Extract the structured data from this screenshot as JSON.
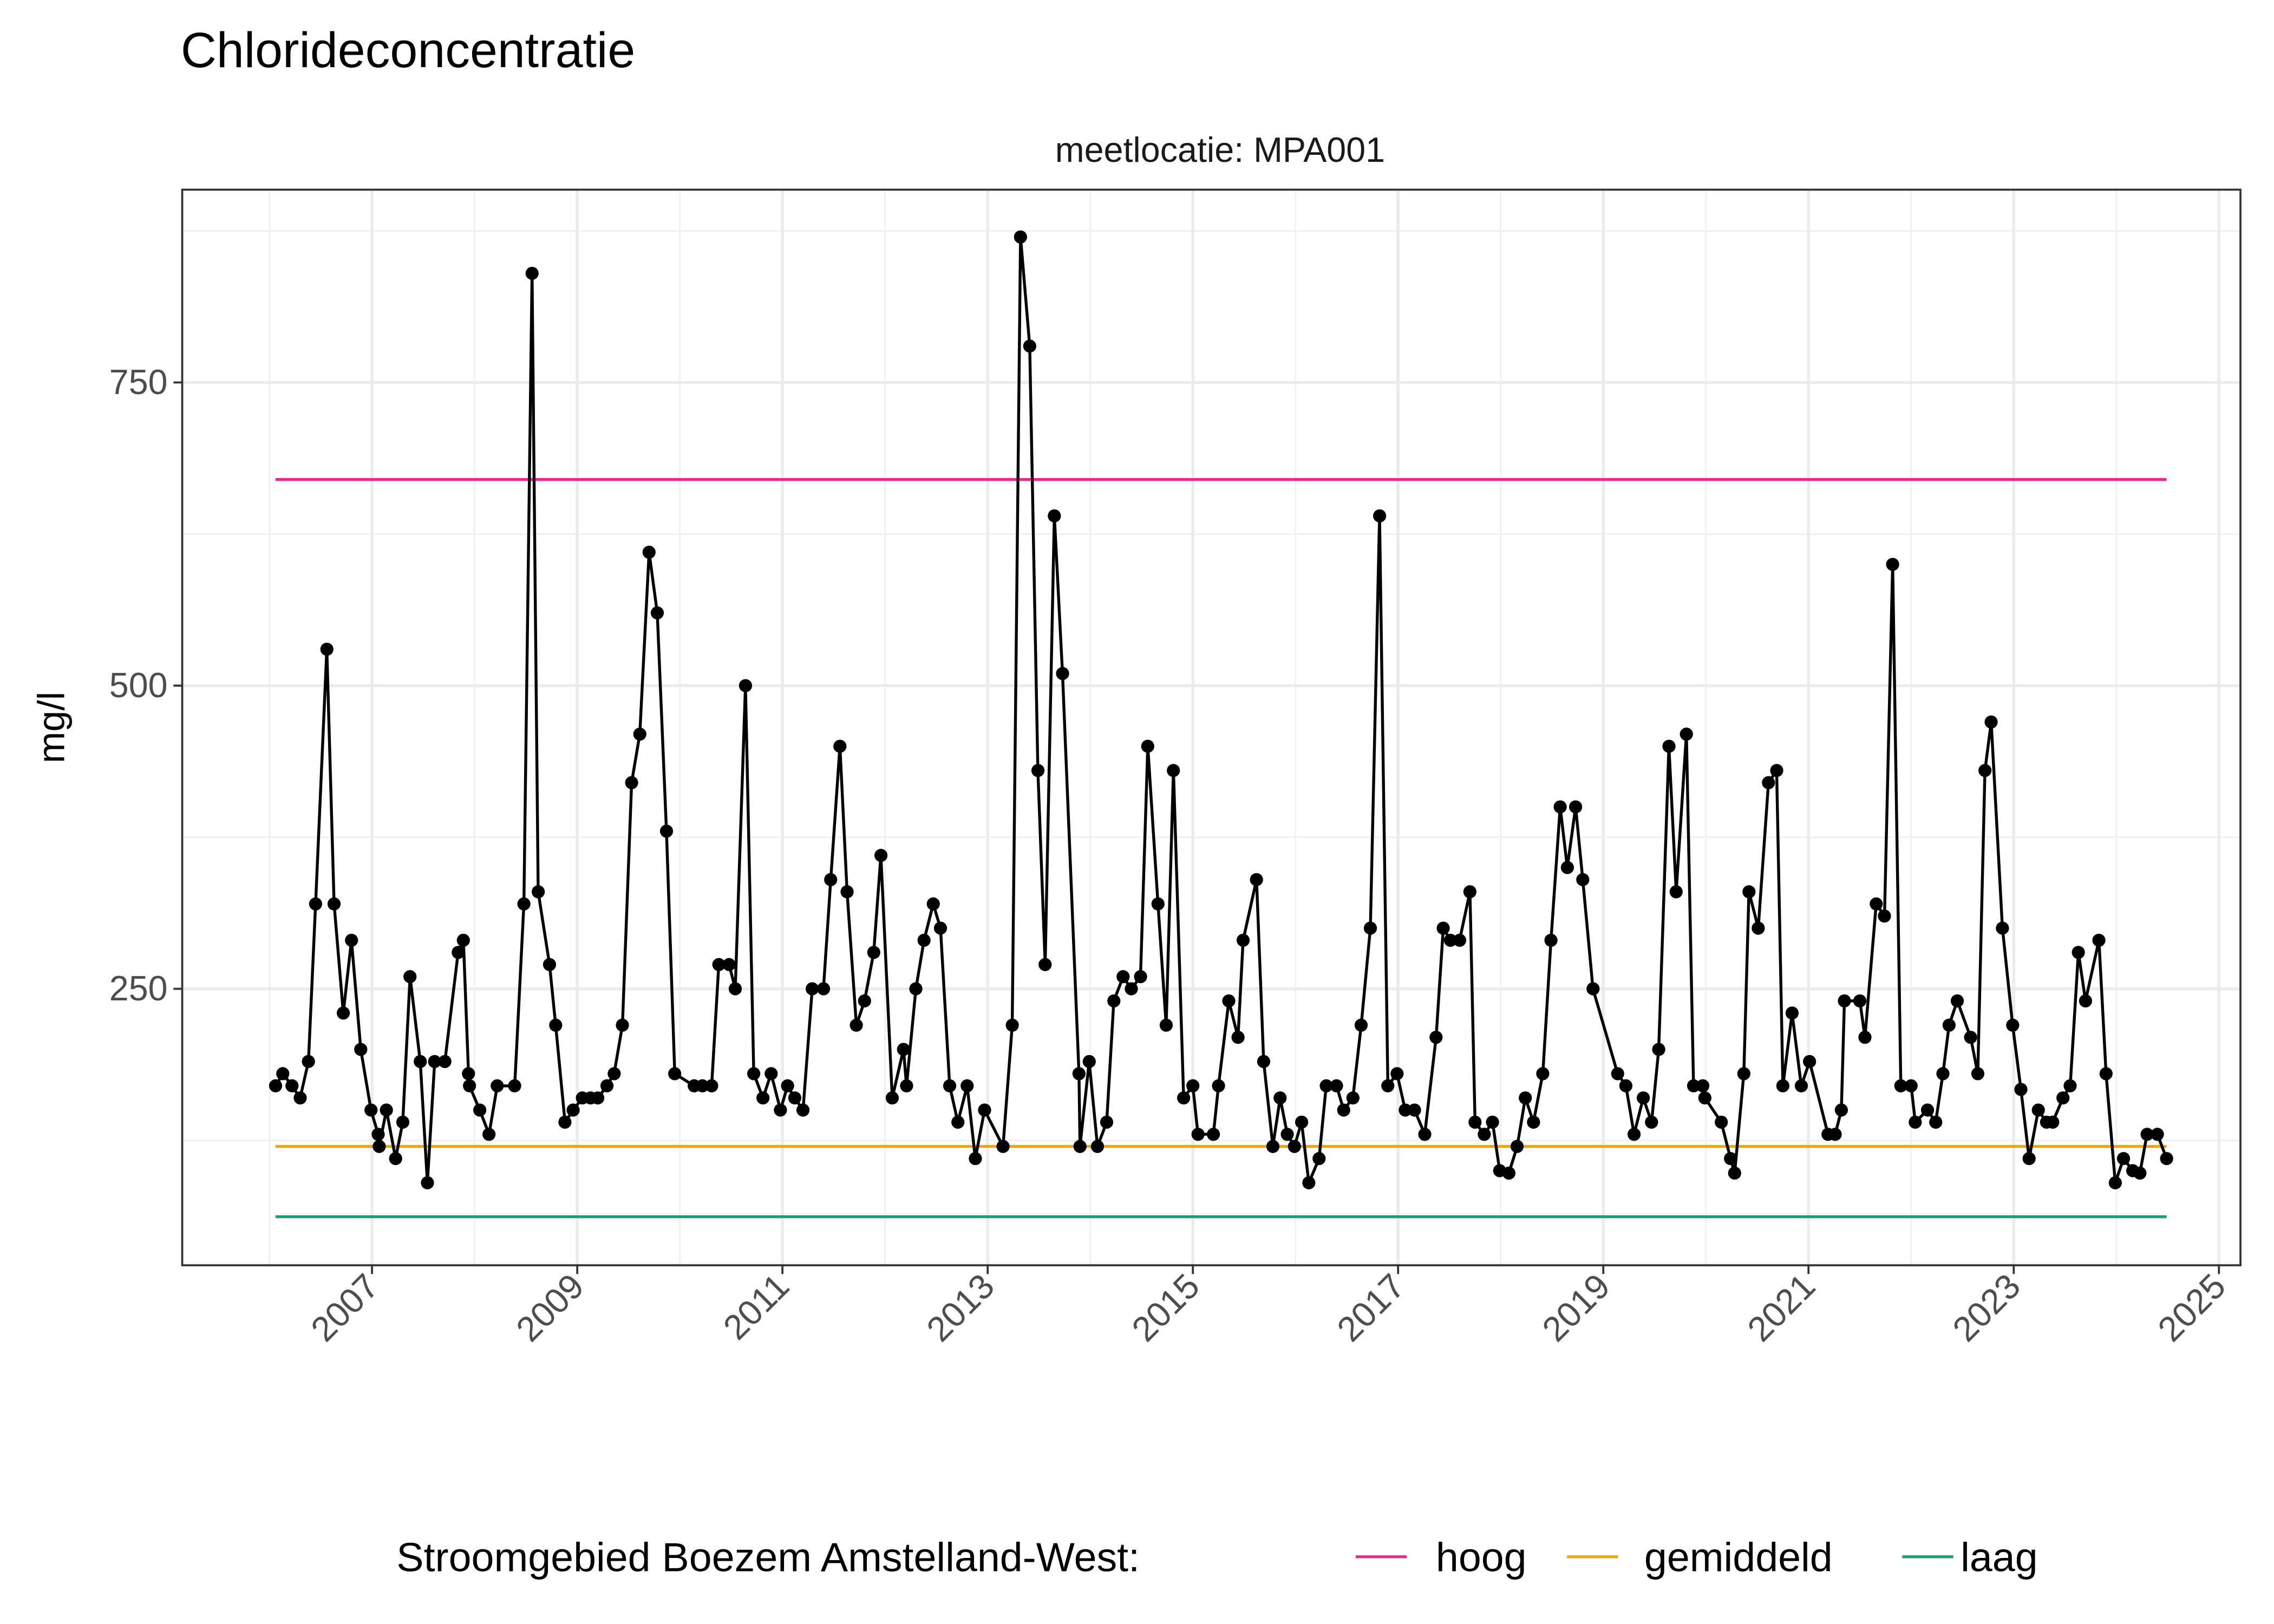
{
  "chart_data": {
    "type": "line",
    "title": "Chlorideconcentratie",
    "facet_label": "meetlocatie: MPA001",
    "xlabel": "",
    "ylabel": "mg/l",
    "xlim": [
      2005.15,
      2025.21
    ],
    "ylim": [
      22,
      909
    ],
    "x_ticks": [
      "2007",
      "2009",
      "2011",
      "2013",
      "2015",
      "2017",
      "2019",
      "2021",
      "2023",
      "2025"
    ],
    "y_ticks": [
      250,
      500,
      750
    ],
    "grid": true,
    "legend": {
      "title": "Stroomgebied Boezem Amstelland-West:",
      "position": "bottom",
      "entries": [
        {
          "label": "hoog",
          "color": "#e7298a"
        },
        {
          "label": "gemiddeld",
          "color": "#e6ab02"
        },
        {
          "label": "laag",
          "color": "#1b9e77"
        }
      ]
    },
    "reference_lines": [
      {
        "name": "hoog",
        "value": 670,
        "color": "#e7298a"
      },
      {
        "name": "gemiddeld",
        "value": 120,
        "color": "#e6ab02"
      },
      {
        "name": "laag",
        "value": 62,
        "color": "#1b9e77"
      }
    ],
    "series": [
      {
        "color": "#000000",
        "x": [
          2006.06,
          2006.13,
          2006.22,
          2006.3,
          2006.38,
          2006.45,
          2006.56,
          2006.63,
          2006.72,
          2006.8,
          2006.89,
          2006.99,
          2007.06,
          2007.07,
          2007.14,
          2007.23,
          2007.3,
          2007.37,
          2007.47,
          2007.54,
          2007.61,
          2007.71,
          2007.84,
          2007.89,
          2007.94,
          2007.95,
          2008.05,
          2008.14,
          2008.22,
          2008.39,
          2008.48,
          2008.56,
          2008.62,
          2008.73,
          2008.79,
          2008.88,
          2008.96,
          2009.05,
          2009.13,
          2009.2,
          2009.29,
          2009.36,
          2009.44,
          2009.53,
          2009.61,
          2009.7,
          2009.78,
          2009.87,
          2009.95,
          2010.14,
          2010.22,
          2010.31,
          2010.38,
          2010.48,
          2010.54,
          2010.64,
          2010.72,
          2010.81,
          2010.89,
          2010.98,
          2011.05,
          2011.12,
          2011.2,
          2011.29,
          2011.4,
          2011.47,
          2011.56,
          2011.63,
          2011.72,
          2011.8,
          2011.89,
          2011.96,
          2012.07,
          2012.18,
          2012.21,
          2012.3,
          2012.38,
          2012.47,
          2012.54,
          2012.63,
          2012.71,
          2012.8,
          2012.88,
          2012.97,
          2013.15,
          2013.24,
          2013.32,
          2013.41,
          2013.49,
          2013.56,
          2013.65,
          2013.73,
          2013.89,
          2013.9,
          2013.99,
          2014.07,
          2014.16,
          2014.23,
          2014.32,
          2014.4,
          2014.49,
          2014.56,
          2014.66,
          2014.74,
          2014.81,
          2014.91,
          2015.0,
          2015.05,
          2015.2,
          2015.25,
          2015.35,
          2015.44,
          2015.49,
          2015.62,
          2015.69,
          2015.78,
          2015.85,
          2015.92,
          2015.99,
          2016.06,
          2016.13,
          2016.23,
          2016.3,
          2016.4,
          2016.47,
          2016.56,
          2016.64,
          2016.73,
          2016.82,
          2016.9,
          2016.99,
          2017.07,
          2017.16,
          2017.26,
          2017.37,
          2017.44,
          2017.51,
          2017.6,
          2017.7,
          2017.75,
          2017.84,
          2017.92,
          2017.99,
          2018.08,
          2018.16,
          2018.24,
          2018.32,
          2018.41,
          2018.49,
          2018.58,
          2018.65,
          2018.73,
          2018.8,
          2018.9,
          2019.14,
          2019.22,
          2019.3,
          2019.39,
          2019.47,
          2019.54,
          2019.64,
          2019.71,
          2019.81,
          2019.88,
          2019.97,
          2019.99,
          2020.15,
          2020.24,
          2020.28,
          2020.37,
          2020.42,
          2020.51,
          2020.61,
          2020.69,
          2020.75,
          2020.84,
          2020.93,
          2021.01,
          2021.19,
          2021.26,
          2021.32,
          2021.35,
          2021.5,
          2021.55,
          2021.66,
          2021.74,
          2021.82,
          2021.9,
          2022.0,
          2022.04,
          2022.16,
          2022.24,
          2022.31,
          2022.37,
          2022.45,
          2022.58,
          2022.65,
          2022.72,
          2022.78,
          2022.89,
          2022.99,
          2023.07,
          2023.15,
          2023.24,
          2023.32,
          2023.38,
          2023.48,
          2023.55,
          2023.63,
          2023.7,
          2023.83,
          2023.9,
          2023.99,
          2024.07,
          2024.16,
          2024.23,
          2024.3,
          2024.4,
          2024.49
        ],
        "y": [
          170,
          180,
          170,
          160,
          190,
          320,
          530,
          320,
          230,
          290,
          200,
          150,
          130,
          120,
          150,
          110,
          140,
          260,
          190,
          90,
          190,
          190,
          280,
          290,
          180,
          170,
          150,
          130,
          170,
          170,
          320,
          840,
          330,
          270,
          220,
          140,
          150,
          160,
          160,
          160,
          170,
          180,
          220,
          420,
          460,
          610,
          560,
          380,
          180,
          170,
          170,
          170,
          270,
          270,
          250,
          500,
          180,
          160,
          180,
          150,
          170,
          160,
          150,
          250,
          250,
          340,
          450,
          330,
          220,
          240,
          280,
          360,
          160,
          200,
          170,
          250,
          290,
          320,
          300,
          170,
          140,
          170,
          110,
          150,
          120,
          220,
          870,
          780,
          430,
          270,
          640,
          510,
          180,
          120,
          190,
          120,
          140,
          240,
          260,
          250,
          260,
          450,
          320,
          220,
          430,
          160,
          170,
          130,
          130,
          170,
          240,
          210,
          290,
          340,
          190,
          120,
          160,
          130,
          120,
          140,
          90,
          110,
          170,
          170,
          150,
          160,
          220,
          300,
          640,
          170,
          180,
          150,
          150,
          130,
          210,
          300,
          290,
          290,
          330,
          140,
          130,
          140,
          100,
          98,
          120,
          160,
          140,
          180,
          290,
          400,
          350,
          400,
          340,
          250,
          180,
          170,
          130,
          160,
          140,
          200,
          450,
          330,
          460,
          170,
          170,
          160,
          140,
          110,
          98,
          180,
          330,
          300,
          420,
          430,
          170,
          230,
          170,
          190,
          130,
          130,
          150,
          240,
          240,
          210,
          320,
          310,
          600,
          170,
          170,
          140,
          150,
          140,
          180,
          220,
          240,
          210,
          180,
          430,
          470,
          300,
          220,
          167,
          110,
          150,
          140,
          140,
          160,
          170,
          280,
          240,
          290,
          180,
          90,
          110,
          100,
          98,
          130,
          130,
          110
        ]
      }
    ]
  }
}
